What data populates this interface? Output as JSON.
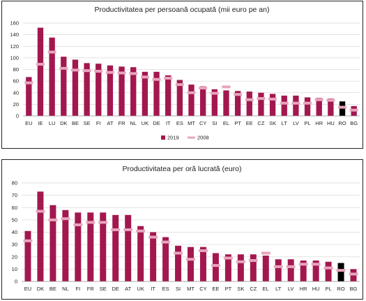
{
  "colors": {
    "bar_2019": "#a3174f",
    "bar_highlight": "#000000",
    "marker_2008": "#e8a5bd",
    "grid": "#d9d9d9"
  },
  "chart_data": [
    {
      "type": "bar",
      "title": "Productivitatea per persoană ocupată (mii euro pe an)",
      "ylim": [
        0,
        160
      ],
      "yticks": [
        0,
        20,
        40,
        60,
        80,
        100,
        120,
        140,
        160
      ],
      "grid": true,
      "legend_position": "bottom",
      "categories": [
        "EU",
        "IE",
        "LU",
        "DK",
        "BE",
        "SE",
        "FI",
        "AT",
        "FR",
        "NL",
        "UK",
        "DE",
        "IT",
        "ES",
        "MT",
        "CY",
        "SI",
        "EL",
        "PT",
        "EE",
        "CZ",
        "SK",
        "LT",
        "LV",
        "PL",
        "HR",
        "HU",
        "RO",
        "BG"
      ],
      "highlight_category": "RO",
      "series": [
        {
          "name": "2019",
          "kind": "bar",
          "values": [
            67,
            152,
            135,
            102,
            97,
            91,
            90,
            87,
            85,
            84,
            76,
            76,
            70,
            62,
            54,
            51,
            46,
            44,
            43,
            42,
            40,
            38,
            35,
            35,
            32,
            31,
            30,
            25,
            17
          ]
        },
        {
          "name": "2008",
          "kind": "marker",
          "values": [
            57,
            89,
            110,
            82,
            79,
            78,
            77,
            75,
            74,
            73,
            67,
            63,
            65,
            54,
            40,
            48,
            39,
            50,
            37,
            28,
            30,
            29,
            22,
            22,
            22,
            28,
            27,
            15,
            10
          ]
        }
      ]
    },
    {
      "type": "bar",
      "title": "Productivitatea per oră lucrată (euro)",
      "ylim": [
        0,
        80
      ],
      "yticks": [
        0,
        10,
        20,
        30,
        40,
        50,
        60,
        70,
        80
      ],
      "grid": true,
      "categories": [
        "EU",
        "DK",
        "BE",
        "NL",
        "FI",
        "FR",
        "SE",
        "DE",
        "AT",
        "UK",
        "IT",
        "ES",
        "SI",
        "MT",
        "CY",
        "EE",
        "PT",
        "SK",
        "CZ",
        "EL",
        "LT",
        "LV",
        "HR",
        "HU",
        "PL",
        "RO",
        "BG"
      ],
      "highlight_category": "RO",
      "series": [
        {
          "name": "2019",
          "kind": "bar",
          "values": [
            41,
            73,
            62,
            58,
            56,
            56,
            56,
            54,
            54,
            45,
            40,
            36,
            29,
            28,
            28,
            23,
            22,
            22,
            22,
            21,
            18,
            18,
            17,
            17,
            16,
            15,
            10
          ]
        },
        {
          "name": "2008",
          "kind": "marker",
          "values": [
            33,
            57,
            50,
            51,
            46,
            48,
            48,
            42,
            42,
            41,
            36,
            32,
            23,
            18,
            25,
            13,
            19,
            16,
            17,
            23,
            12,
            12,
            14,
            14,
            11,
            9,
            6
          ]
        }
      ]
    }
  ]
}
